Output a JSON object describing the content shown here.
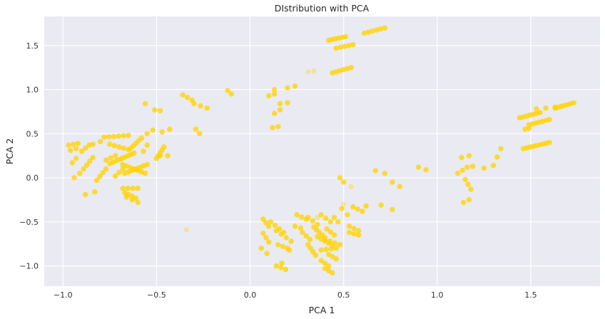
{
  "chart_data": {
    "type": "scatter",
    "title": "DIstribution with PCA",
    "xlabel": "PCA 1",
    "ylabel": "PCA 2",
    "xlim": [
      -1.1,
      1.87
    ],
    "ylim": [
      -1.23,
      1.83
    ],
    "xticks": [
      -1.0,
      -0.5,
      0.0,
      0.5,
      1.0,
      1.5
    ],
    "yticks": [
      -1.0,
      -0.5,
      0.0,
      0.5,
      1.0,
      1.5
    ],
    "xtick_labels": [
      "−1.0",
      "−0.5",
      "0.0",
      "0.5",
      "1.0",
      "1.5"
    ],
    "ytick_labels": [
      "−1.0",
      "−0.5",
      "0.0",
      "0.5",
      "1.0",
      "1.5"
    ],
    "grid": true,
    "background": "#eaeaf2",
    "point_color": "#ffd400",
    "faint_points": [
      [
        0.31,
        1.2
      ],
      [
        0.34,
        1.21
      ],
      [
        -0.34,
        -0.59
      ],
      [
        0.5,
        -0.3
      ],
      [
        0.54,
        -0.1
      ],
      [
        0.36,
        -0.45
      ]
    ],
    "point_strips": [
      {
        "from": [
          0.42,
          1.56
        ],
        "to": [
          0.51,
          1.6
        ],
        "n": 6
      },
      {
        "from": [
          0.46,
          1.47
        ],
        "to": [
          0.55,
          1.51
        ],
        "n": 5
      },
      {
        "from": [
          0.61,
          1.64
        ],
        "to": [
          0.72,
          1.7
        ],
        "n": 6
      },
      {
        "from": [
          0.44,
          1.19
        ],
        "to": [
          0.54,
          1.25
        ],
        "n": 6
      },
      {
        "from": [
          0.2,
          1.02
        ],
        "to": [
          0.24,
          1.04
        ],
        "n": 2
      },
      {
        "from": [
          0.1,
          0.93
        ],
        "to": [
          0.13,
          0.95
        ],
        "n": 2
      },
      {
        "from": [
          0.16,
          0.84
        ],
        "to": [
          0.2,
          0.85
        ],
        "n": 2
      },
      {
        "from": [
          0.13,
          0.73
        ],
        "to": [
          0.16,
          0.77
        ],
        "n": 2
      },
      {
        "from": [
          0.12,
          0.57
        ],
        "to": [
          0.15,
          0.58
        ],
        "n": 2
      },
      {
        "from": [
          -0.36,
          0.94
        ],
        "to": [
          -0.31,
          0.88
        ],
        "n": 3
      },
      {
        "from": [
          -0.3,
          0.84
        ],
        "to": [
          -0.23,
          0.79
        ],
        "n": 3
      },
      {
        "from": [
          -0.12,
          0.99
        ],
        "to": [
          -0.1,
          0.95
        ],
        "n": 2
      },
      {
        "from": [
          -0.51,
          0.77
        ],
        "to": [
          -0.48,
          0.76
        ],
        "n": 2
      },
      {
        "from": [
          -0.56,
          0.84
        ],
        "to": [
          -0.55,
          0.83
        ],
        "n": 1
      },
      {
        "from": [
          -0.29,
          0.55
        ],
        "to": [
          -0.27,
          0.5
        ],
        "n": 2
      },
      {
        "from": [
          -0.47,
          0.52
        ],
        "to": [
          -0.43,
          0.55
        ],
        "n": 2
      },
      {
        "from": [
          0.67,
          0.08
        ],
        "to": [
          0.72,
          0.05
        ],
        "n": 2
      },
      {
        "from": [
          0.76,
          -0.05
        ],
        "to": [
          0.8,
          -0.1
        ],
        "n": 2
      },
      {
        "from": [
          0.9,
          0.12
        ],
        "to": [
          0.94,
          0.09
        ],
        "n": 2
      },
      {
        "from": [
          0.7,
          -0.31
        ],
        "to": [
          0.76,
          -0.36
        ],
        "n": 2
      },
      {
        "from": [
          1.13,
          0.23
        ],
        "to": [
          1.17,
          0.25
        ],
        "n": 2
      },
      {
        "from": [
          1.11,
          0.05
        ],
        "to": [
          1.16,
          0.12
        ],
        "n": 3
      },
      {
        "from": [
          1.19,
          0.13
        ],
        "to": [
          1.25,
          0.11
        ],
        "n": 2
      },
      {
        "from": [
          1.15,
          -0.02
        ],
        "to": [
          1.18,
          -0.13
        ],
        "n": 3
      },
      {
        "from": [
          1.14,
          -0.28
        ],
        "to": [
          1.17,
          -0.25
        ],
        "n": 2
      },
      {
        "from": [
          1.3,
          0.14
        ],
        "to": [
          1.34,
          0.33
        ],
        "n": 3
      },
      {
        "from": [
          1.44,
          0.68
        ],
        "to": [
          1.55,
          0.74
        ],
        "n": 7
      },
      {
        "from": [
          1.49,
          0.6
        ],
        "to": [
          1.6,
          0.66
        ],
        "n": 7
      },
      {
        "from": [
          1.63,
          0.79
        ],
        "to": [
          1.73,
          0.85
        ],
        "n": 7
      },
      {
        "from": [
          1.53,
          0.78
        ],
        "to": [
          1.63,
          0.8
        ],
        "n": 3
      },
      {
        "from": [
          1.47,
          0.55
        ],
        "to": [
          1.49,
          0.56
        ],
        "n": 2
      },
      {
        "from": [
          1.46,
          0.33
        ],
        "to": [
          1.6,
          0.4
        ],
        "n": 9
      },
      {
        "from": [
          -0.97,
          0.37
        ],
        "to": [
          -0.92,
          0.39
        ],
        "n": 3
      },
      {
        "from": [
          -0.96,
          0.31
        ],
        "to": [
          -0.93,
          0.33
        ],
        "n": 2
      },
      {
        "from": [
          -0.95,
          0.17
        ],
        "to": [
          -0.93,
          0.22
        ],
        "n": 2
      },
      {
        "from": [
          -0.94,
          0.0
        ],
        "to": [
          -0.91,
          0.05
        ],
        "n": 2
      },
      {
        "from": [
          -0.9,
          0.3
        ],
        "to": [
          -0.86,
          0.37
        ],
        "n": 3
      },
      {
        "from": [
          -0.89,
          0.1
        ],
        "to": [
          -0.84,
          0.23
        ],
        "n": 4
      },
      {
        "from": [
          -0.88,
          -0.19
        ],
        "to": [
          -0.83,
          -0.16
        ],
        "n": 2
      },
      {
        "from": [
          -0.84,
          0.38
        ],
        "to": [
          -0.8,
          0.41
        ],
        "n": 2
      },
      {
        "from": [
          -0.82,
          -0.03
        ],
        "to": [
          -0.77,
          0.1
        ],
        "n": 4
      },
      {
        "from": [
          -0.78,
          0.46
        ],
        "to": [
          -0.65,
          0.48
        ],
        "n": 6
      },
      {
        "from": [
          -0.75,
          0.38
        ],
        "to": [
          -0.65,
          0.32
        ],
        "n": 5
      },
      {
        "from": [
          -0.77,
          0.2
        ],
        "to": [
          -0.72,
          0.25
        ],
        "n": 3
      },
      {
        "from": [
          -0.75,
          0.16
        ],
        "to": [
          -0.62,
          0.28
        ],
        "n": 9
      },
      {
        "from": [
          -0.72,
          0.02
        ],
        "to": [
          -0.68,
          0.1
        ],
        "n": 3
      },
      {
        "from": [
          -0.67,
          0.05
        ],
        "to": [
          -0.55,
          0.15
        ],
        "n": 8
      },
      {
        "from": [
          -0.68,
          0.15
        ],
        "to": [
          -0.56,
          0.05
        ],
        "n": 7
      },
      {
        "from": [
          -0.64,
          0.33
        ],
        "to": [
          -0.58,
          0.45
        ],
        "n": 5
      },
      {
        "from": [
          -0.67,
          -0.17
        ],
        "to": [
          -0.61,
          -0.23
        ],
        "n": 4
      },
      {
        "from": [
          -0.68,
          -0.12
        ],
        "to": [
          -0.6,
          -0.12
        ],
        "n": 4
      },
      {
        "from": [
          -0.66,
          -0.22
        ],
        "to": [
          -0.6,
          -0.28
        ],
        "n": 3
      },
      {
        "from": [
          -0.55,
          0.5
        ],
        "to": [
          -0.52,
          0.54
        ],
        "n": 2
      },
      {
        "from": [
          -0.5,
          0.22
        ],
        "to": [
          -0.46,
          0.35
        ],
        "n": 5
      },
      {
        "from": [
          -0.48,
          0.25
        ],
        "to": [
          -0.44,
          0.25
        ],
        "n": 2
      },
      {
        "from": [
          -0.57,
          0.3
        ],
        "to": [
          -0.55,
          0.37
        ],
        "n": 2
      },
      {
        "from": [
          0.13,
          1.0
        ],
        "to": [
          0.13,
          1.0
        ],
        "n": 1
      },
      {
        "from": [
          0.07,
          -0.47
        ],
        "to": [
          0.1,
          -0.55
        ],
        "n": 3
      },
      {
        "from": [
          0.07,
          -0.63
        ],
        "to": [
          0.1,
          -0.73
        ],
        "n": 3
      },
      {
        "from": [
          0.06,
          -0.8
        ],
        "to": [
          0.09,
          -0.86
        ],
        "n": 2
      },
      {
        "from": [
          0.11,
          -0.5
        ],
        "to": [
          0.18,
          -0.62
        ],
        "n": 4
      },
      {
        "from": [
          0.14,
          -0.6
        ],
        "to": [
          0.22,
          -0.72
        ],
        "n": 4
      },
      {
        "from": [
          0.15,
          -0.76
        ],
        "to": [
          0.2,
          -0.8
        ],
        "n": 3
      },
      {
        "from": [
          0.14,
          -1.0
        ],
        "to": [
          0.19,
          -1.04
        ],
        "n": 3
      },
      {
        "from": [
          0.17,
          -0.97
        ],
        "to": [
          0.19,
          -0.98
        ],
        "n": 1
      },
      {
        "from": [
          0.21,
          -0.82
        ],
        "to": [
          0.23,
          -0.8
        ],
        "n": 1
      },
      {
        "from": [
          0.24,
          -0.55
        ],
        "to": [
          0.27,
          -0.57
        ],
        "n": 2
      },
      {
        "from": [
          0.25,
          -0.42
        ],
        "to": [
          0.3,
          -0.47
        ],
        "n": 3
      },
      {
        "from": [
          0.28,
          -0.62
        ],
        "to": [
          0.32,
          -0.7
        ],
        "n": 3
      },
      {
        "from": [
          0.31,
          -0.45
        ],
        "to": [
          0.36,
          -0.53
        ],
        "n": 3
      },
      {
        "from": [
          0.31,
          -0.76
        ],
        "to": [
          0.35,
          -0.88
        ],
        "n": 4
      },
      {
        "from": [
          0.34,
          -0.56
        ],
        "to": [
          0.4,
          -0.68
        ],
        "n": 5
      },
      {
        "from": [
          0.36,
          -0.67
        ],
        "to": [
          0.44,
          -0.77
        ],
        "n": 5
      },
      {
        "from": [
          0.38,
          -0.82
        ],
        "to": [
          0.46,
          -0.8
        ],
        "n": 4
      },
      {
        "from": [
          0.4,
          -0.7
        ],
        "to": [
          0.48,
          -0.76
        ],
        "n": 4
      },
      {
        "from": [
          0.38,
          -0.94
        ],
        "to": [
          0.42,
          -1.0
        ],
        "n": 3
      },
      {
        "from": [
          0.4,
          -1.03
        ],
        "to": [
          0.44,
          -1.08
        ],
        "n": 3
      },
      {
        "from": [
          0.42,
          -0.87
        ],
        "to": [
          0.46,
          -0.92
        ],
        "n": 3
      },
      {
        "from": [
          0.38,
          -0.42
        ],
        "to": [
          0.43,
          -0.5
        ],
        "n": 3
      },
      {
        "from": [
          0.41,
          -0.58
        ],
        "to": [
          0.45,
          -0.65
        ],
        "n": 3
      },
      {
        "from": [
          0.45,
          -0.45
        ],
        "to": [
          0.47,
          -0.5
        ],
        "n": 2
      },
      {
        "from": [
          0.49,
          -0.35
        ],
        "to": [
          0.52,
          -0.42
        ],
        "n": 2
      },
      {
        "from": [
          0.53,
          -0.55
        ],
        "to": [
          0.58,
          -0.6
        ],
        "n": 3
      },
      {
        "from": [
          0.53,
          -0.62
        ],
        "to": [
          0.58,
          -0.65
        ],
        "n": 3
      },
      {
        "from": [
          0.55,
          -0.33
        ],
        "to": [
          0.6,
          -0.38
        ],
        "n": 3
      },
      {
        "from": [
          0.62,
          -0.32
        ],
        "to": [
          0.64,
          -0.33
        ],
        "n": 1
      },
      {
        "from": [
          0.48,
          0.0
        ],
        "to": [
          0.5,
          -0.05
        ],
        "n": 2
      }
    ]
  }
}
